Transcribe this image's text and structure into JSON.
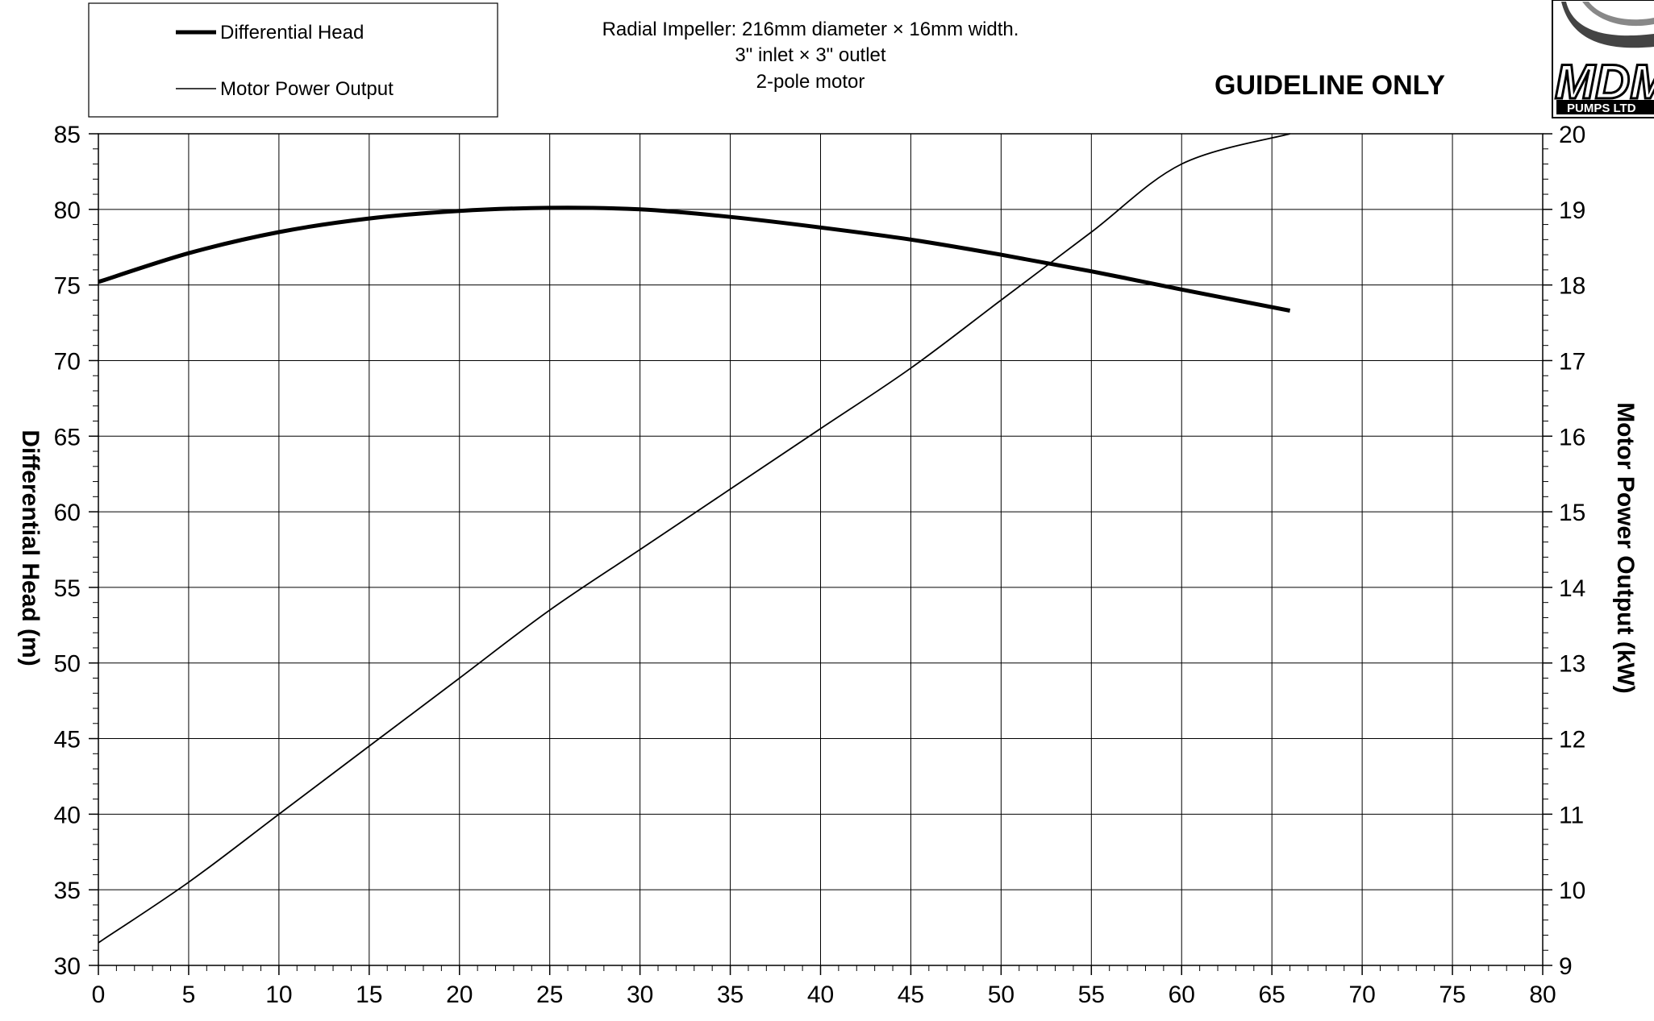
{
  "header": {
    "description_lines": [
      "Radial Impeller: 216mm diameter × 16mm width.",
      "3\" inlet × 3\" outlet",
      "2-pole motor"
    ],
    "guideline": "GUIDELINE ONLY",
    "logo": {
      "main": "MDM",
      "sub": "PUMPS LTD"
    }
  },
  "chart_data": {
    "type": "line",
    "title": "",
    "xlabel": "",
    "ylabel": "Differential Head (m)",
    "y2label": "Motor Power Output (kW)",
    "xlim": [
      0,
      80
    ],
    "ylim": [
      30,
      85
    ],
    "y2lim": [
      9,
      20
    ],
    "x_ticks": [
      0,
      5,
      10,
      15,
      20,
      25,
      30,
      35,
      40,
      45,
      50,
      55,
      60,
      65,
      70,
      75,
      80
    ],
    "y_ticks": [
      30,
      35,
      40,
      45,
      50,
      55,
      60,
      65,
      70,
      75,
      80,
      85
    ],
    "y2_ticks": [
      9,
      10,
      11,
      12,
      13,
      14,
      15,
      16,
      17,
      18,
      19,
      20
    ],
    "grid": true,
    "legend_position": "top-left",
    "series": [
      {
        "name": "Differential Head",
        "axis": "left",
        "style": "thick",
        "x": [
          0,
          5,
          10,
          15,
          20,
          25,
          30,
          35,
          40,
          45,
          50,
          55,
          60,
          66
        ],
        "values": [
          75.2,
          77.1,
          78.5,
          79.4,
          79.9,
          80.1,
          80.0,
          79.5,
          78.8,
          78.0,
          77.0,
          75.9,
          74.7,
          73.3
        ]
      },
      {
        "name": "Motor Power Output",
        "axis": "right",
        "style": "thin",
        "x": [
          0,
          5,
          10,
          15,
          20,
          25,
          30,
          35,
          40,
          45,
          50,
          55,
          60,
          66
        ],
        "values": [
          9.3,
          10.1,
          11.0,
          11.9,
          12.8,
          13.7,
          14.5,
          15.3,
          16.1,
          16.9,
          17.8,
          18.7,
          19.6,
          20.0
        ]
      }
    ]
  }
}
